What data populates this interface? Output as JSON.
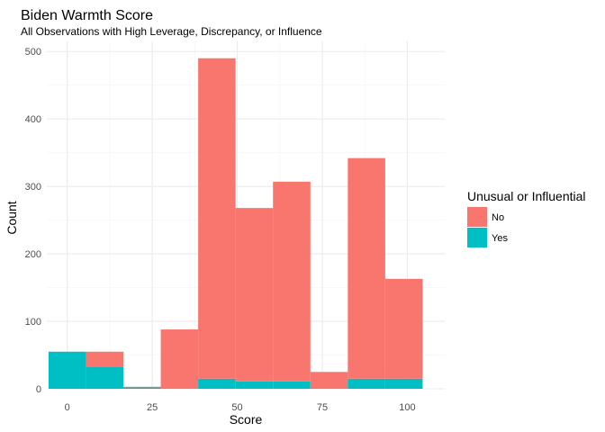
{
  "chart_data": {
    "type": "bar",
    "title": "Biden Warmth Score",
    "subtitle": "All Observations with High Leverage, Discrepancy, or Influence",
    "xlabel": "Score",
    "ylabel": "Count",
    "x_ticks": [
      0,
      25,
      50,
      75,
      100
    ],
    "y_ticks": [
      0,
      100,
      200,
      300,
      400,
      500
    ],
    "xlim": [
      -6,
      111
    ],
    "ylim": [
      0,
      515
    ],
    "stacked": true,
    "bins": [
      {
        "x0": -5.5,
        "x1": 5.5,
        "no": 0,
        "yes": 55
      },
      {
        "x0": 5.5,
        "x1": 16.5,
        "no": 23,
        "yes": 32
      },
      {
        "x0": 16.5,
        "x1": 27.5,
        "no": 1,
        "yes": 2
      },
      {
        "x0": 27.5,
        "x1": 38.5,
        "no": 87,
        "yes": 1
      },
      {
        "x0": 38.5,
        "x1": 49.5,
        "no": 475,
        "yes": 15
      },
      {
        "x0": 49.5,
        "x1": 60.5,
        "no": 257,
        "yes": 11
      },
      {
        "x0": 60.5,
        "x1": 71.5,
        "no": 296,
        "yes": 11
      },
      {
        "x0": 71.5,
        "x1": 82.5,
        "no": 24,
        "yes": 1
      },
      {
        "x0": 82.5,
        "x1": 93.5,
        "no": 327,
        "yes": 15
      },
      {
        "x0": 93.5,
        "x1": 104.5,
        "no": 148,
        "yes": 15
      }
    ],
    "legend": {
      "title": "Unusual or Influential",
      "position": "right",
      "entries": [
        {
          "label": "No",
          "color": "#F8766D"
        },
        {
          "label": "Yes",
          "color": "#00BFC4"
        }
      ]
    },
    "colors": {
      "no": "#F8766D",
      "yes": "#00BFC4"
    },
    "grid": true
  }
}
